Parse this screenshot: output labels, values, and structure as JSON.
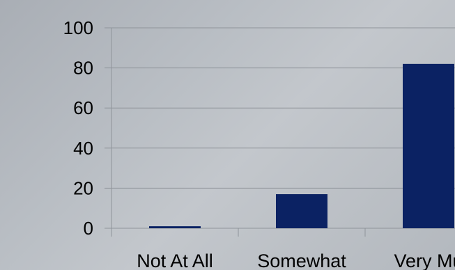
{
  "chart_data": {
    "type": "bar",
    "categories": [
      "Not At All",
      "Somewhat",
      "Very Mu"
    ],
    "values": [
      1,
      17,
      82
    ],
    "ylim": [
      0,
      100
    ],
    "yticks": [
      0,
      20,
      40,
      60,
      80,
      100
    ],
    "ytick_labels": [
      "0",
      "20",
      "40",
      "60",
      "80",
      "100"
    ],
    "grid": true,
    "bar_color": "#0b2263",
    "gridline_color": "#8f949a",
    "background_color": "#b8bcc2"
  }
}
